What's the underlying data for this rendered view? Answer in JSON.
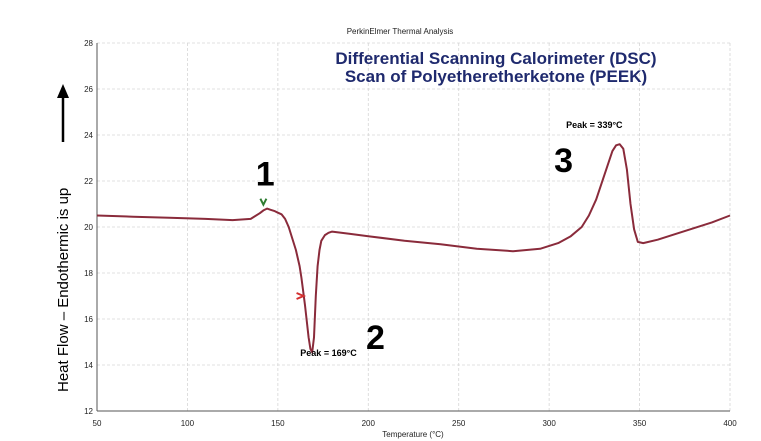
{
  "header": "PerkinElmer Thermal Analysis",
  "title_lines": [
    "Differential Scanning Calorimeter (DSC)",
    "Scan of Polyetheretherketone (PEEK)"
  ],
  "colors": {
    "curve": "#8a2b3b",
    "title": "#1f2a6e",
    "grid": "#d6d6d6",
    "axis": "#555555",
    "marker_green": "#2e7d32",
    "marker_red": "#d32f2f"
  },
  "chart_data": {
    "type": "line",
    "xlabel": "Temperature (°C)",
    "ylabel": "Heat Flow – Endothermic is up",
    "xlim": [
      50,
      400
    ],
    "ylim": [
      12,
      28
    ],
    "x_ticks": [
      50,
      100,
      150,
      200,
      250,
      300,
      350,
      400
    ],
    "y_ticks": [
      12,
      14,
      16,
      18,
      20,
      22,
      24,
      26,
      28
    ],
    "grid": true,
    "series": [
      {
        "x": [
          50,
          70,
          90,
          110,
          125,
          135,
          140,
          142,
          144,
          146,
          148,
          150,
          152,
          154,
          156,
          158,
          160,
          162,
          163,
          164,
          165,
          166,
          167,
          168,
          169,
          170,
          171,
          172,
          173,
          174,
          176,
          178,
          180,
          185,
          190,
          200,
          220,
          240,
          260,
          280,
          295,
          305,
          312,
          318,
          322,
          326,
          329,
          332,
          335,
          337,
          339,
          341,
          343,
          345,
          347,
          349,
          352,
          360,
          370,
          380,
          390,
          400
        ],
        "y": [
          20.5,
          20.45,
          20.4,
          20.35,
          20.3,
          20.35,
          20.6,
          20.72,
          20.8,
          20.75,
          20.7,
          20.62,
          20.55,
          20.35,
          20.0,
          19.5,
          19.0,
          18.3,
          17.8,
          17.2,
          16.6,
          15.9,
          15.2,
          14.7,
          14.55,
          15.2,
          17.0,
          18.3,
          19.0,
          19.4,
          19.65,
          19.75,
          19.8,
          19.75,
          19.7,
          19.6,
          19.4,
          19.25,
          19.05,
          18.95,
          19.05,
          19.3,
          19.6,
          20.0,
          20.5,
          21.2,
          21.9,
          22.6,
          23.3,
          23.55,
          23.6,
          23.4,
          22.5,
          21.0,
          19.9,
          19.35,
          19.3,
          19.45,
          19.7,
          19.95,
          20.2,
          20.5
        ]
      }
    ],
    "annotations": [
      {
        "label": "1",
        "x": 143,
        "y": 21.8
      },
      {
        "label": "2",
        "x": 204,
        "y": 14.7
      },
      {
        "label": "3",
        "x": 308,
        "y": 22.4
      },
      {
        "label": "Peak = 169°C",
        "x": 178,
        "y": 14.4
      },
      {
        "label": "Peak = 339°C",
        "x": 325,
        "y": 24.3
      }
    ],
    "markers": [
      {
        "name": "green-marker",
        "x": 142,
        "y": 21.1
      },
      {
        "name": "red-marker",
        "x": 162,
        "y": 17.0
      }
    ]
  }
}
